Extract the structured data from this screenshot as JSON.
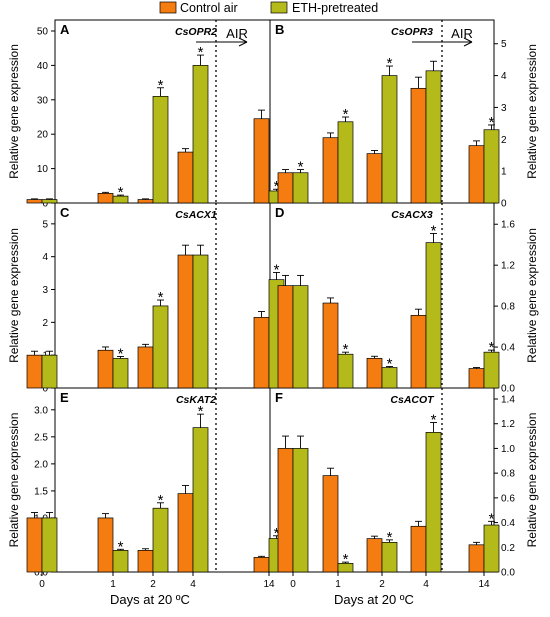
{
  "legend": {
    "control": {
      "label": "Control air",
      "color": "#f47c11"
    },
    "eth": {
      "label": "ETH-pretreated",
      "color": "#b5ba1b"
    }
  },
  "x_title": "Days at 20 ºC",
  "air_label": "AIR",
  "chart_data": [
    {
      "panel": "A",
      "gene": "CsOPR2",
      "type": "bar",
      "categories": [
        "0",
        "1",
        "2",
        "4",
        "14"
      ],
      "ylabel": "Relative gene expression",
      "ylim": [
        0,
        50
      ],
      "yticks": [
        "0",
        "10",
        "20",
        "30",
        "40",
        "50"
      ],
      "axis_side": "left",
      "series": [
        {
          "name": "Control air",
          "values": [
            1.0,
            2.8,
            1.0,
            14.8,
            24.5
          ],
          "errors": [
            0.2,
            0.3,
            0.2,
            1.0,
            2.5
          ]
        },
        {
          "name": "ETH-pretreated",
          "values": [
            1.0,
            2.0,
            31.0,
            40.0,
            3.5
          ],
          "errors": [
            0.2,
            0.3,
            2.5,
            3.0,
            0.5
          ]
        }
      ],
      "significant": [
        false,
        true,
        true,
        true,
        true
      ],
      "show_air": true
    },
    {
      "panel": "B",
      "gene": "CsOPR3",
      "type": "bar",
      "categories": [
        "0",
        "1",
        "2",
        "4",
        "14"
      ],
      "ylabel": "Relative gene expression",
      "ylim": [
        0,
        5.4
      ],
      "yticks": [
        "0",
        "1",
        "2",
        "3",
        "4",
        "5"
      ],
      "axis_side": "right",
      "series": [
        {
          "name": "Control air",
          "values": [
            0.95,
            2.05,
            1.55,
            3.6,
            1.8
          ],
          "errors": [
            0.1,
            0.15,
            0.1,
            0.35,
            0.15
          ]
        },
        {
          "name": "ETH-pretreated",
          "values": [
            0.95,
            2.55,
            4.0,
            4.15,
            2.3
          ],
          "errors": [
            0.1,
            0.15,
            0.3,
            0.3,
            0.15
          ]
        }
      ],
      "significant": [
        true,
        true,
        true,
        false,
        true
      ],
      "show_air": true
    },
    {
      "panel": "C",
      "gene": "CsACX1",
      "type": "bar",
      "categories": [
        "0",
        "1",
        "2",
        "4",
        "14"
      ],
      "ylabel": "Relative gene expression",
      "ylim": [
        0,
        5.3
      ],
      "yticks": [
        "0",
        "1",
        "2",
        "3",
        "4",
        "5"
      ],
      "axis_side": "left",
      "series": [
        {
          "name": "Control air",
          "values": [
            1.0,
            1.15,
            1.25,
            4.05,
            2.15
          ],
          "errors": [
            0.12,
            0.1,
            0.08,
            0.3,
            0.18
          ]
        },
        {
          "name": "ETH-pretreated",
          "values": [
            1.0,
            0.9,
            2.5,
            4.05,
            3.3
          ],
          "errors": [
            0.12,
            0.06,
            0.18,
            0.3,
            0.22
          ]
        }
      ],
      "significant": [
        false,
        true,
        true,
        false,
        true
      ],
      "show_air": false
    },
    {
      "panel": "D",
      "gene": "CsACX3",
      "type": "bar",
      "categories": [
        "0",
        "1",
        "2",
        "4",
        "14"
      ],
      "ylabel": "Relative gene expression",
      "ylim": [
        0,
        1.7
      ],
      "yticks": [
        "0.0",
        "0.4",
        "0.8",
        "1.2",
        "1.6"
      ],
      "axis_side": "right",
      "series": [
        {
          "name": "Control air",
          "values": [
            1.0,
            0.83,
            0.29,
            0.71,
            0.19
          ],
          "errors": [
            0.1,
            0.05,
            0.02,
            0.06,
            0.01
          ]
        },
        {
          "name": "ETH-pretreated",
          "values": [
            1.0,
            0.33,
            0.2,
            1.42,
            0.35
          ],
          "errors": [
            0.1,
            0.02,
            0.01,
            0.09,
            0.02
          ]
        }
      ],
      "significant": [
        false,
        true,
        true,
        true,
        true
      ],
      "show_air": false
    },
    {
      "panel": "E",
      "gene": "CsKAT2",
      "type": "bar",
      "categories": [
        "0",
        "1",
        "2",
        "4",
        "14"
      ],
      "ylabel": "Relative gene expression",
      "ylim": [
        0,
        3.2
      ],
      "yticks": [
        "0.0",
        "0.5",
        "1.0",
        "1.5",
        "2.0",
        "2.5",
        "3.0"
      ],
      "axis_side": "left",
      "series": [
        {
          "name": "Control air",
          "values": [
            1.0,
            1.0,
            0.4,
            1.45,
            0.27
          ],
          "errors": [
            0.1,
            0.08,
            0.03,
            0.15,
            0.02
          ]
        },
        {
          "name": "ETH-pretreated",
          "values": [
            1.0,
            0.4,
            1.18,
            2.67,
            0.62
          ],
          "errors": [
            0.1,
            0.02,
            0.1,
            0.25,
            0.05
          ]
        }
      ],
      "significant": [
        false,
        true,
        true,
        true,
        true
      ],
      "show_air": false
    },
    {
      "panel": "F",
      "gene": "CsACOT",
      "type": "bar",
      "categories": [
        "0",
        "1",
        "2",
        "4",
        "14"
      ],
      "ylabel": "Relative gene expression",
      "ylim": [
        0,
        1.4
      ],
      "yticks": [
        "0.0",
        "0.2",
        "0.4",
        "0.6",
        "0.8",
        "1.0",
        "1.2",
        "1.4"
      ],
      "axis_side": "right",
      "series": [
        {
          "name": "Control air",
          "values": [
            1.0,
            0.78,
            0.27,
            0.37,
            0.22
          ],
          "errors": [
            0.1,
            0.06,
            0.02,
            0.04,
            0.02
          ]
        },
        {
          "name": "ETH-pretreated",
          "values": [
            1.0,
            0.07,
            0.24,
            1.13,
            0.38
          ],
          "errors": [
            0.1,
            0.01,
            0.02,
            0.08,
            0.03
          ]
        }
      ],
      "significant": [
        false,
        true,
        true,
        true,
        true
      ],
      "show_air": false
    }
  ]
}
